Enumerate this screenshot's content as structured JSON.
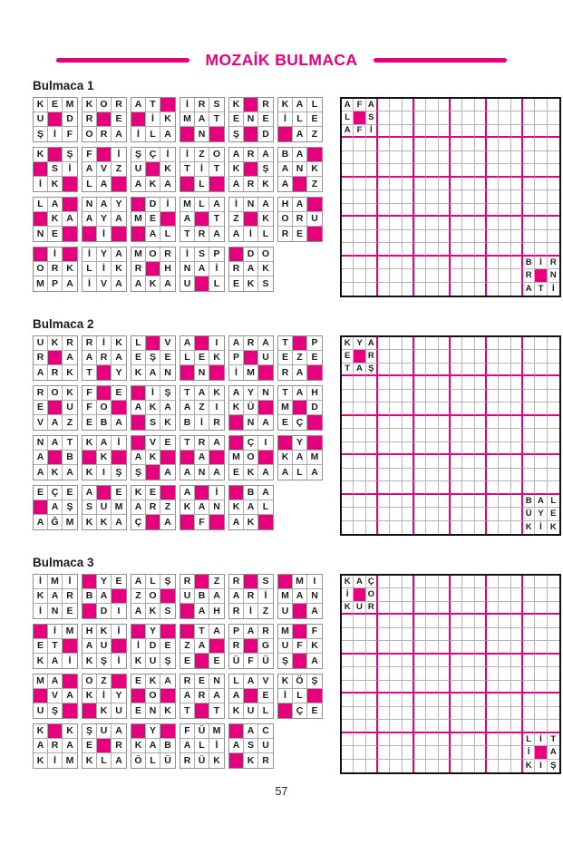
{
  "header": {
    "title": "MOZAİK BULMACA"
  },
  "footer": {
    "page_number": "57"
  },
  "colors": {
    "accent": "#e6007e",
    "board_outer_border": "#111111",
    "grid_line": "#b5b5b5",
    "block_border": "#8f8f8f"
  },
  "legend": {
    "fill_marker": "#",
    "fill_meaning": "magenta-filled-cell"
  },
  "puzzles": [
    {
      "label": "Bulmaca 1",
      "block_rows": [
        [
          [
            "KEM",
            "U#D",
            "ŞİF"
          ],
          [
            "KOR",
            "R#E",
            "ORA"
          ],
          [
            "AT#",
            "#İK",
            "İLA"
          ],
          [
            "İRS",
            "MAT",
            "#N#"
          ],
          [
            "K#R",
            "ENE",
            "Ş#D"
          ],
          [
            "KAL",
            "İLE",
            "#AZ"
          ]
        ],
        [
          [
            "K#Ş",
            "#Sİ",
            "İK#"
          ],
          [
            "F#İ",
            "AVZ",
            "LA#"
          ],
          [
            "ŞÇİ",
            "U#K",
            "AKA"
          ],
          [
            "İZO",
            "TİT",
            "#L#"
          ],
          [
            "ARA",
            "K#Ş",
            "ARK"
          ],
          [
            "BA#",
            "ANK",
            "A#Z"
          ]
        ],
        [
          [
            "LA#",
            "#KA",
            "NE#"
          ],
          [
            "NAY",
            "AYA",
            "#İ#"
          ],
          [
            "#Dİ",
            "ME#",
            "#AL"
          ],
          [
            "MLA",
            "A#T",
            "TRA"
          ],
          [
            "İNA",
            "Z#K",
            "AİL"
          ],
          [
            "HA#",
            "ORU",
            "RE#"
          ]
        ],
        [
          [
            "#İ#",
            "ORK",
            "MPA"
          ],
          [
            "İYA",
            "LİK",
            "İVA"
          ],
          [
            "MOR",
            "R#H",
            "AKA"
          ],
          [
            "İSP",
            "NAİ",
            "U#L"
          ],
          [
            "#DO",
            "RAK",
            "EKS"
          ]
        ]
      ],
      "board": {
        "cols": 18,
        "rows": 15,
        "top_left": [
          "AFA",
          "L#S",
          "AFİ"
        ],
        "bottom_right": [
          "BİR",
          "R#N",
          "ATİ"
        ]
      }
    },
    {
      "label": "Bulmaca 2",
      "block_rows": [
        [
          [
            "UKR",
            "R#A",
            "ARK"
          ],
          [
            "RİK",
            "ARA",
            "T#Y"
          ],
          [
            "L#V",
            "EŞE",
            "KAN"
          ],
          [
            "A#I",
            "LEK",
            "#N#"
          ],
          [
            "ARA",
            "P#U",
            "İM#"
          ],
          [
            "T#P",
            "EZE",
            "RA#"
          ]
        ],
        [
          [
            "ROK",
            "E#U",
            "VAZ"
          ],
          [
            "F#E",
            "FO#",
            "EBA"
          ],
          [
            "#İŞ",
            "AKA",
            "#SK"
          ],
          [
            "TAK",
            "AZI",
            "BİR"
          ],
          [
            "AYN",
            "KÜ#",
            "#NA"
          ],
          [
            "TAH",
            "M#D",
            "EÇ#"
          ]
        ],
        [
          [
            "NAT",
            "A#B",
            "AKA"
          ],
          [
            "KAİ",
            "#K#",
            "KIŞ"
          ],
          [
            "#VE",
            "AK#",
            "Ş#A"
          ],
          [
            "TRA",
            "#A#",
            "ANA"
          ],
          [
            "#ÇI",
            "MO#",
            "EKA"
          ],
          [
            "#Y#",
            "KAM",
            "ALA"
          ]
        ],
        [
          [
            "EÇE",
            "#AŞ",
            "AĞM"
          ],
          [
            "A#E",
            "SUM",
            "KKA"
          ],
          [
            "KE#",
            "ARZ",
            "Ç#A"
          ],
          [
            "A#İ",
            "KAN",
            "#F#"
          ],
          [
            "#BA",
            "KAL",
            "AK#"
          ]
        ]
      ],
      "board": {
        "cols": 18,
        "rows": 15,
        "top_left": [
          "KYA",
          "E#R",
          "TAŞ"
        ],
        "bottom_right": [
          "BAL",
          "ÜYE",
          "KİK"
        ]
      }
    },
    {
      "label": "Bulmaca 3",
      "block_rows": [
        [
          [
            "İMİ",
            "KAR",
            "İNE"
          ],
          [
            "#YE",
            "BA#",
            "#DI"
          ],
          [
            "ALŞ",
            "ZO#",
            "AKS"
          ],
          [
            "R#Z",
            "UBA",
            "#AH"
          ],
          [
            "R#S",
            "ARİ",
            "RİZ"
          ],
          [
            "#MI",
            "MAN",
            "U#A"
          ]
        ],
        [
          [
            "#İM",
            "ET#",
            "KAİ"
          ],
          [
            "HKİ",
            "AU#",
            "KŞİ"
          ],
          [
            "#Y#",
            "İDE",
            "KUŞ"
          ],
          [
            "#TA",
            "ZA#",
            "E#E"
          ],
          [
            "PAR",
            "R#G",
            "ÜFÜ"
          ],
          [
            "M#F",
            "UFK",
            "Ş#A"
          ]
        ],
        [
          [
            "MA#",
            "#VA",
            "UŞ#"
          ],
          [
            "OZ#",
            "KİY",
            "#KU"
          ],
          [
            "EKA",
            "#O#",
            "ENK"
          ],
          [
            "REN",
            "ARA",
            "T#T"
          ],
          [
            "LAV",
            "A#E",
            "KUL"
          ],
          [
            "KÖŞ",
            "İL#",
            "#ÇE"
          ]
        ],
        [
          [
            "K#K",
            "ARA",
            "KİM"
          ],
          [
            "ŞUA",
            "E#R",
            "KLA"
          ],
          [
            "#Y#",
            "KAB",
            "ÖLÜ"
          ],
          [
            "FÜM",
            "ALİ",
            "RÜK"
          ],
          [
            "#AC",
            "ASU",
            "#KR"
          ]
        ]
      ],
      "board": {
        "cols": 18,
        "rows": 15,
        "top_left": [
          "KAÇ",
          "İ#O",
          "KUR"
        ],
        "bottom_right": [
          "LİT",
          "İ#A",
          "KIŞ"
        ]
      }
    }
  ]
}
